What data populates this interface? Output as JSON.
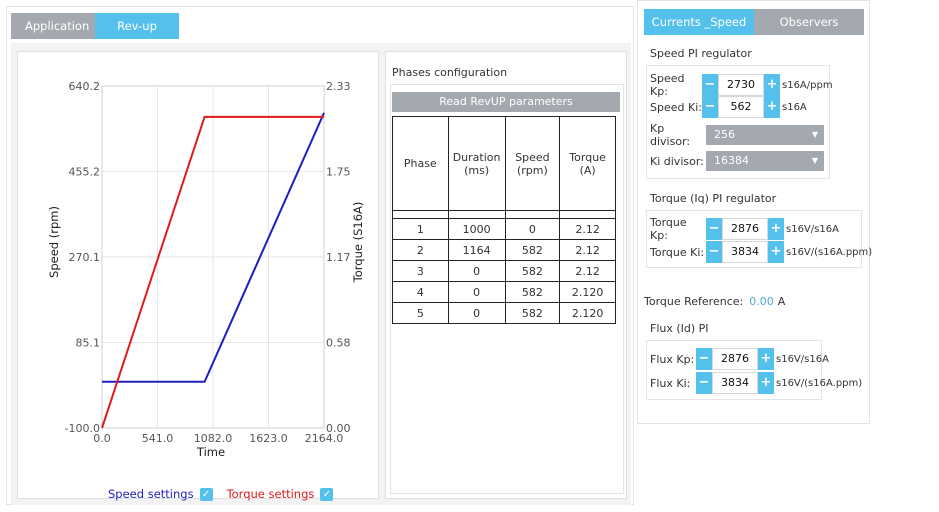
{
  "tabs_left": {
    "application": "Application",
    "revup": "Rev-up"
  },
  "chart": {
    "y_left_ticks": [
      "640.2",
      "455.2",
      "270.1",
      "85.1",
      "-100.0"
    ],
    "y_right_ticks": [
      "2.33",
      "1.75",
      "1.17",
      "0.58",
      "0.00"
    ],
    "x_ticks": [
      "0.0",
      "541.0",
      "1082.0",
      "1623.0",
      "2164.0"
    ],
    "xlabel": "Time",
    "ylabel_left": "Speed (rpm)",
    "ylabel_right": "Torque (S16A)",
    "legend_speed": "Speed settings",
    "legend_torque": "Torque settings",
    "speed_color": "#1f1fc0",
    "torque_color": "#e01b1b"
  },
  "chart_data": {
    "type": "line",
    "xlabel": "Time",
    "ylabel": "Speed (rpm)",
    "y2label": "Torque (S16A)",
    "xlim": [
      0,
      2164
    ],
    "ylim": [
      -100.0,
      640.2
    ],
    "y2lim": [
      0.0,
      2.33
    ],
    "grid": true,
    "legend": "bottom",
    "series": [
      {
        "name": "Speed settings",
        "axis": "left",
        "color": "#1f1fc0",
        "x": [
          0,
          1000,
          2164
        ],
        "y": [
          0,
          0,
          582
        ]
      },
      {
        "name": "Torque settings",
        "axis": "right",
        "color": "#e01b1b",
        "x": [
          0,
          1000,
          2164
        ],
        "y": [
          0,
          2.12,
          2.12
        ]
      }
    ]
  },
  "phases": {
    "title": "Phases configuration",
    "read_button": "Read RevUP parameters",
    "headers": {
      "phase": "Phase",
      "duration": "Duration\n(ms)",
      "speed": "Speed\n(rpm)",
      "torque": "Torque\n(A)"
    },
    "rows": [
      {
        "phase": "1",
        "duration": "1000",
        "speed": "0",
        "torque": "2.12"
      },
      {
        "phase": "2",
        "duration": "1164",
        "speed": "582",
        "torque": "2.12"
      },
      {
        "phase": "3",
        "duration": "0",
        "speed": "582",
        "torque": "2.12"
      },
      {
        "phase": "4",
        "duration": "0",
        "speed": "582",
        "torque": "2.120"
      },
      {
        "phase": "5",
        "duration": "0",
        "speed": "582",
        "torque": "2.120"
      }
    ]
  },
  "tabs_right": {
    "currents": "Currents _Speed",
    "observers": "Observers"
  },
  "speed_pi": {
    "title": "Speed PI regulator",
    "kp_label": "Speed Kp:",
    "kp_value": "2730",
    "kp_unit": "s16A/ppm",
    "ki_label": "Speed Ki:",
    "ki_value": "562",
    "ki_unit": "s16A",
    "kp_div_label": "Kp divisor:",
    "kp_div_value": "256",
    "ki_div_label": "Ki divisor:",
    "ki_div_value": "16384"
  },
  "torque_pi": {
    "title": "Torque (Iq) PI regulator",
    "kp_label": "Torque Kp:",
    "kp_value": "2876",
    "kp_unit": "s16V/s16A",
    "ki_label": "Torque Ki:",
    "ki_value": "3834",
    "ki_unit": "s16V/(s16A.ppm)"
  },
  "torque_ref": {
    "label": "Torque Reference:",
    "value": "0.00",
    "unit": "A"
  },
  "flux_pi": {
    "title": "Flux (Id) PI",
    "kp_label": "Flux Kp:",
    "kp_value": "2876",
    "kp_unit": "s16V/s16A",
    "ki_label": "Flux Ki:",
    "ki_value": "3834",
    "ki_unit": "s16V/(s16A.ppm)"
  },
  "icons": {
    "minus": "−",
    "plus": "+",
    "check": "✓",
    "caret": "▼"
  }
}
